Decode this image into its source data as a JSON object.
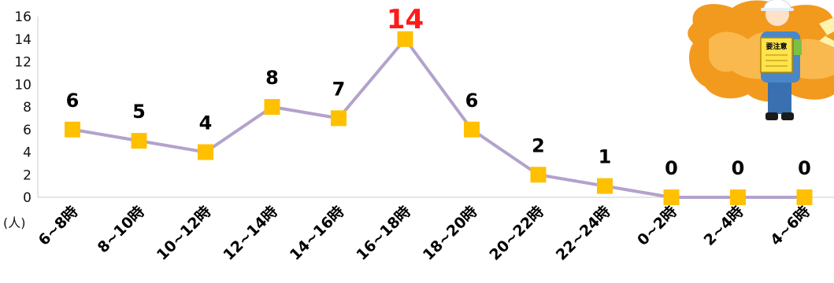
{
  "chart_data": {
    "type": "line",
    "title": "",
    "xlabel": "",
    "ylabel": "",
    "unit_label": "(人)",
    "categories": [
      "6~8時",
      "8~10時",
      "10~12時",
      "12~14時",
      "14~16時",
      "16~18時",
      "18~20時",
      "20~22時",
      "22~24時",
      "0~2時",
      "2~4時",
      "4~6時"
    ],
    "series": [
      {
        "values": [
          6,
          5,
          4,
          8,
          7,
          14,
          6,
          2,
          1,
          0,
          0,
          0
        ]
      }
    ],
    "ylim": [
      0,
      16
    ],
    "yticks": [
      "0",
      "2",
      "4",
      "6",
      "8",
      "10",
      "12",
      "14",
      "16"
    ],
    "grid": false,
    "legend": "none",
    "colors": {
      "line": "#b3a2cc",
      "marker": "#ffc000",
      "peak_label": "#ff1a1a",
      "label": "#000000"
    }
  },
  "illustration": {
    "name": "construction-worker-warning-illustration",
    "sign_text": "要注意"
  }
}
